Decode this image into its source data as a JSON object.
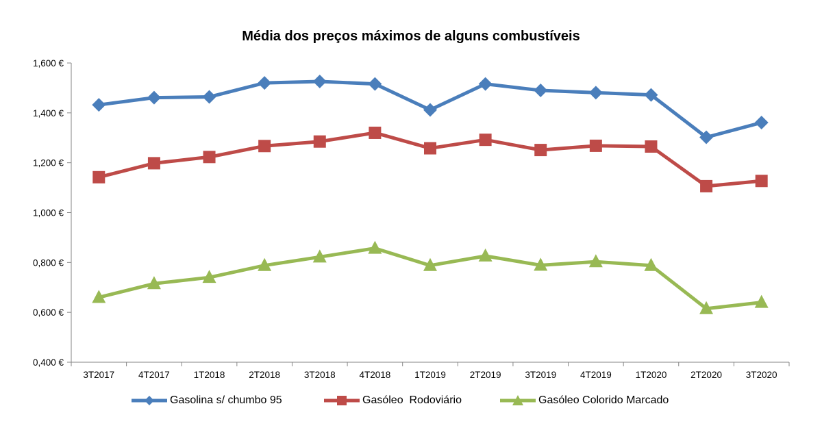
{
  "chart_data": {
    "type": "line",
    "title": "Média dos preços máximos  de alguns combustíveis",
    "categories": [
      "3T2017",
      "4T2017",
      "1T2018",
      "2T2018",
      "3T2018",
      "4T2018",
      "1T2019",
      "2T2019",
      "3T2019",
      "4T2019",
      "1T2020",
      "2T2020",
      "3T2020"
    ],
    "ylim": [
      0.4,
      1.6
    ],
    "yticks": [
      "0,400 €",
      "0,600 €",
      "0,800 €",
      "1,000 €",
      "1,200 €",
      "1,400 €",
      "1,600 €"
    ],
    "ytick_values": [
      0.4,
      0.6,
      0.8,
      1.0,
      1.2,
      1.4,
      1.6
    ],
    "grid": false,
    "legend_position": "bottom",
    "series": [
      {
        "name": "Gasolina s/ chumbo 95",
        "color": "#4a7ebb",
        "marker": "diamond",
        "values": [
          1.432,
          1.461,
          1.464,
          1.52,
          1.526,
          1.516,
          1.412,
          1.516,
          1.49,
          1.481,
          1.472,
          1.302,
          1.361
        ]
      },
      {
        "name": "Gasóleo  Rodoviário",
        "color": "#be4b48",
        "marker": "square",
        "values": [
          1.142,
          1.198,
          1.223,
          1.267,
          1.285,
          1.32,
          1.258,
          1.292,
          1.251,
          1.268,
          1.265,
          1.106,
          1.127
        ]
      },
      {
        "name": "Gasóleo Colorido Marcado",
        "color": "#98b954",
        "marker": "triangle",
        "values": [
          0.66,
          0.715,
          0.74,
          0.788,
          0.822,
          0.857,
          0.788,
          0.826,
          0.789,
          0.803,
          0.788,
          0.615,
          0.64
        ]
      }
    ]
  }
}
